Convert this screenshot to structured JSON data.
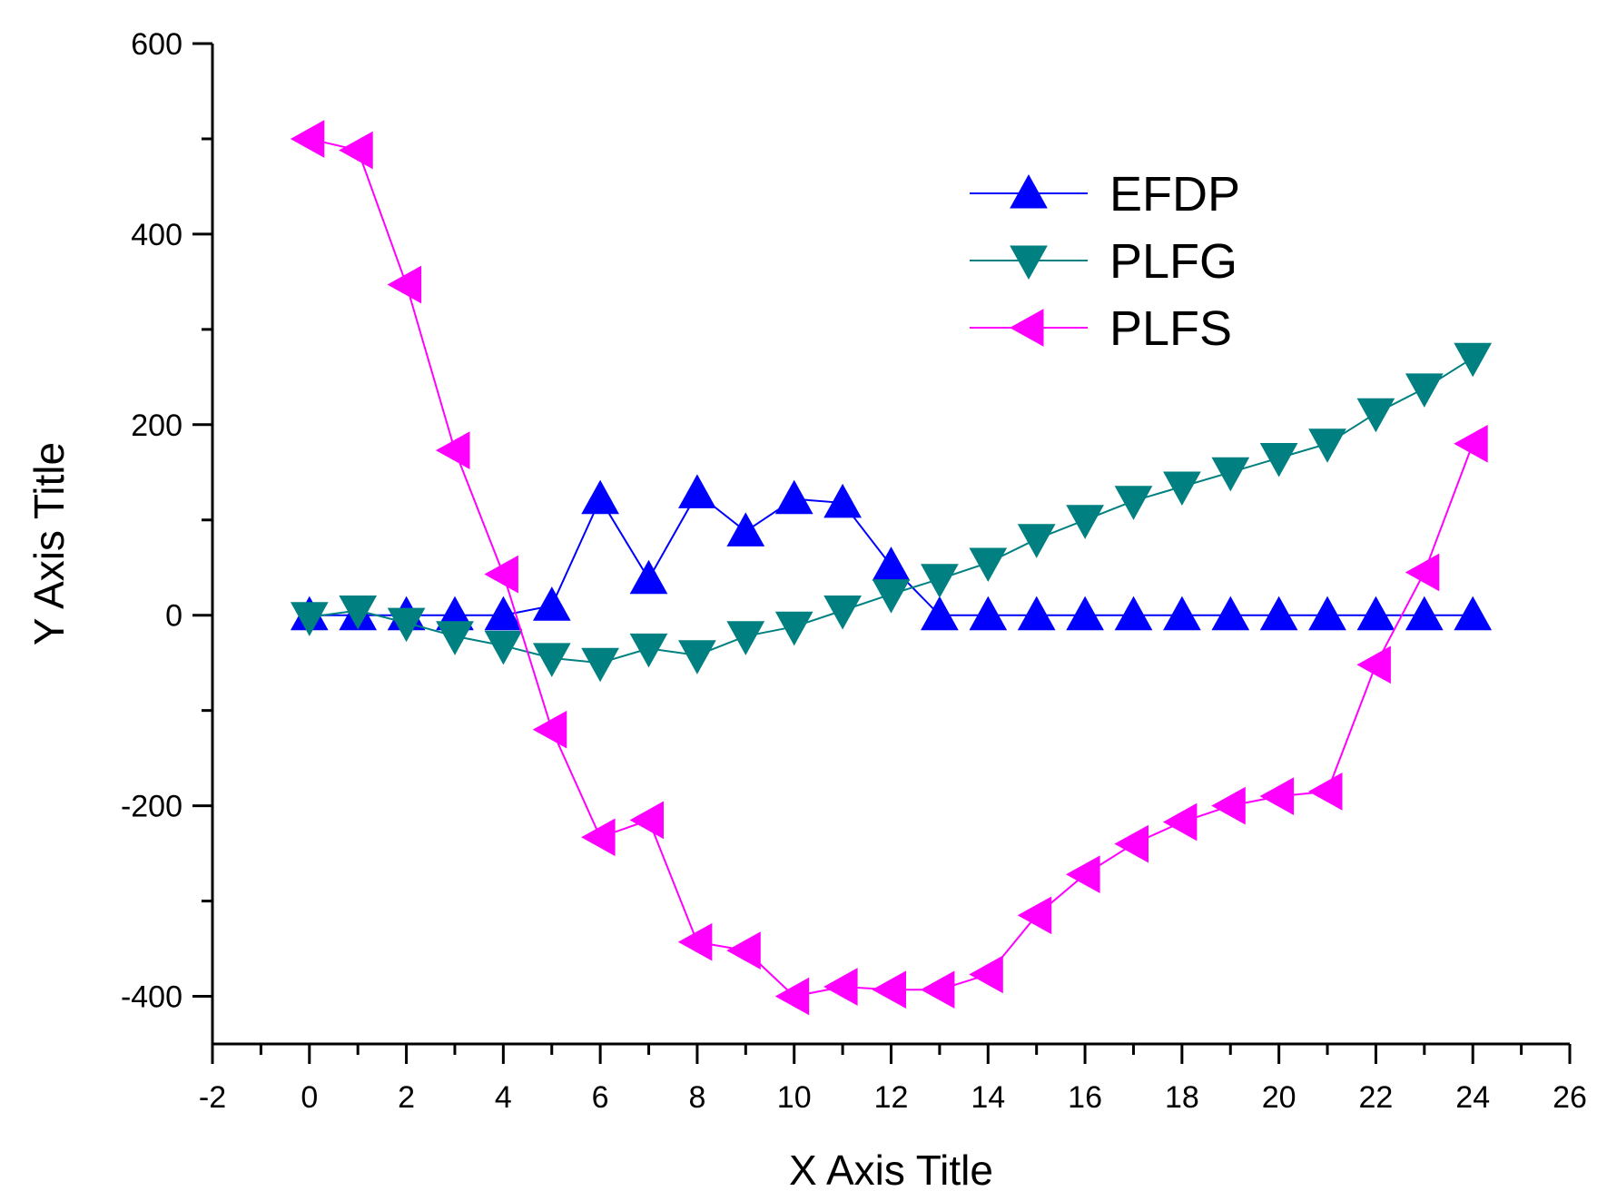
{
  "chart_data": {
    "type": "line",
    "title": "",
    "xlabel": "X Axis Title",
    "ylabel": "Y Axis Title",
    "xlim": [
      -2,
      26
    ],
    "ylim": [
      -450,
      600
    ],
    "xticks": [
      -2,
      0,
      2,
      4,
      6,
      8,
      10,
      12,
      14,
      16,
      18,
      20,
      22,
      24,
      26
    ],
    "yticks": [
      -400,
      -200,
      0,
      200,
      400,
      600
    ],
    "x": [
      0,
      1,
      2,
      3,
      4,
      5,
      6,
      7,
      8,
      9,
      10,
      11,
      12,
      13,
      14,
      15,
      16,
      17,
      18,
      19,
      20,
      21,
      22,
      23,
      24
    ],
    "legend_position": "top-right",
    "grid": false,
    "series": [
      {
        "name": "EFDP",
        "color": "#0000ff",
        "marker": "triangle-up",
        "values": [
          0,
          0,
          0,
          0,
          0,
          10,
          122,
          38,
          128,
          88,
          122,
          118,
          52,
          0,
          0,
          0,
          0,
          0,
          0,
          0,
          0,
          0,
          0,
          0,
          0
        ]
      },
      {
        "name": "PLFG",
        "color": "#008080",
        "marker": "triangle-down",
        "values": [
          -2,
          5,
          -8,
          -22,
          -32,
          -45,
          -50,
          -35,
          -42,
          -22,
          -12,
          5,
          22,
          38,
          55,
          80,
          100,
          120,
          135,
          150,
          165,
          180,
          212,
          238,
          270
        ]
      },
      {
        "name": "PLFS",
        "color": "#ff00ff",
        "marker": "triangle-left",
        "values": [
          500,
          488,
          347,
          173,
          43,
          -120,
          -233,
          -215,
          -343,
          -352,
          -400,
          -390,
          -393,
          -393,
          -377,
          -315,
          -272,
          -240,
          -217,
          -200,
          -190,
          -185,
          -52,
          45,
          180
        ]
      }
    ]
  }
}
